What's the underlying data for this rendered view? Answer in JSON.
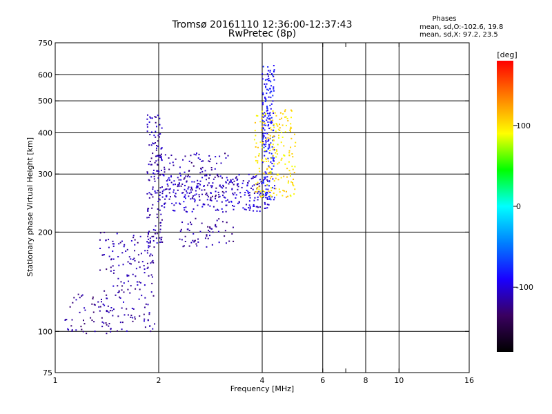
{
  "chart_data": {
    "type": "scatter",
    "title": "Tromsø 20161110 12:36:00-12:37:43",
    "subtitle": "RwPretec (8p)",
    "xlabel": "Frequency [MHz]",
    "ylabel": "Stationary phase Virtual Height [km]",
    "x_scale": "log2",
    "y_scale": "log",
    "xlim": [
      1,
      16
    ],
    "ylim": [
      75,
      750
    ],
    "x_ticks": [
      1,
      2,
      4,
      6,
      8,
      10,
      16
    ],
    "x_ticks_minor": [
      7
    ],
    "y_ticks": [
      75,
      100,
      200,
      300,
      400,
      500,
      600,
      750
    ],
    "grid_x": [
      2,
      4,
      6,
      8,
      10
    ],
    "grid_y": [
      100,
      200,
      300,
      400,
      500,
      600
    ],
    "stats": {
      "heading": "Phases",
      "line_o": "mean, sd,O:-102.6, 19.8",
      "line_x": "mean, sd,X:  97.2, 23.5"
    },
    "colorbar": {
      "label": "[deg]",
      "range": [
        -180,
        180
      ],
      "ticks": [
        100,
        0,
        -100
      ],
      "colors": [
        "#000000",
        "#3a0060",
        "#1a00ff",
        "#0080ff",
        "#00ffff",
        "#00ff00",
        "#ffff00",
        "#ff8000",
        "#ff0000"
      ]
    },
    "series": [
      {
        "trace": [
          {
            "f1": 1.35,
            "f2": 1.95,
            "h1": 100,
            "h2": 200,
            "phase": -115,
            "n": 180
          },
          {
            "f1": 1.85,
            "f2": 2.05,
            "h1": 180,
            "h2": 460,
            "phase": -112,
            "n": 150
          },
          {
            "f1": 2.05,
            "f2": 4.2,
            "h1": 230,
            "h2": 300,
            "phase": -105,
            "n": 260
          },
          {
            "f1": 2.0,
            "f2": 3.2,
            "h1": 250,
            "h2": 350,
            "phase": -115,
            "n": 120
          },
          {
            "f1": 2.3,
            "f2": 3.3,
            "h1": 180,
            "h2": 220,
            "phase": -118,
            "n": 60
          },
          {
            "f1": 4.0,
            "f2": 4.35,
            "h1": 250,
            "h2": 640,
            "phase": -85,
            "n": 190
          },
          {
            "f1": 3.8,
            "f2": 5.0,
            "h1": 255,
            "h2": 470,
            "phase": 100,
            "n": 200
          },
          {
            "f1": 1.05,
            "f2": 1.5,
            "h1": 98,
            "h2": 130,
            "phase": -120,
            "n": 50
          }
        ]
      }
    ]
  }
}
